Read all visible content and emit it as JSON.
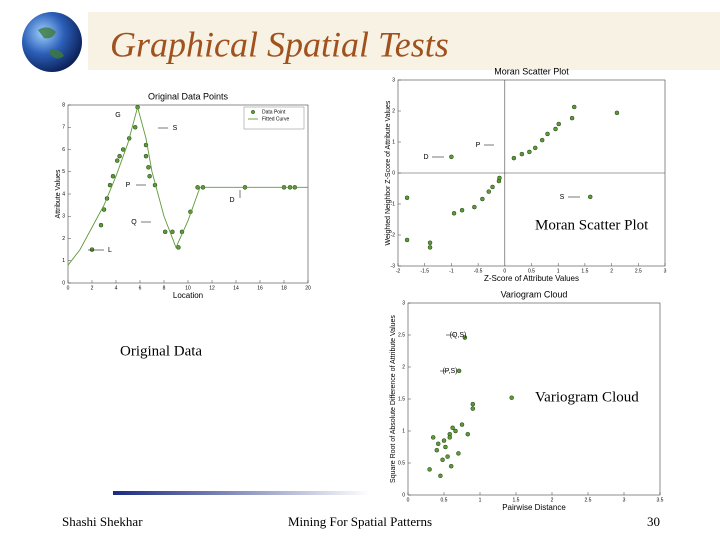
{
  "header": {
    "title": "Graphical Spatial Tests"
  },
  "captions": {
    "original": "Original Data",
    "moran": "Moran Scatter Plot",
    "variogram": "Variogram Cloud"
  },
  "footer": {
    "author": "Shashi Shekhar",
    "course": "Mining For Spatial Patterns",
    "page": "30"
  },
  "chart_data": [
    {
      "type": "scatter",
      "title": "Original Data Points",
      "x_label": "Location",
      "y_label": "Attribute Values",
      "xlim": [
        0,
        20
      ],
      "xticks": [
        0,
        2,
        4,
        6,
        8,
        10,
        12,
        14,
        16,
        18,
        20
      ],
      "ylim": [
        0,
        8
      ],
      "yticks": [
        0,
        1,
        2,
        3,
        4,
        5,
        6,
        7,
        8
      ],
      "legend": "upper right",
      "series": [
        {
          "name": "Data Point",
          "color": "#5f9a3a",
          "style": "points",
          "x": [
            2,
            2.75,
            3,
            3.25,
            3.5,
            3.75,
            4.1,
            4.3,
            4.6,
            5.1,
            5.6,
            5.8,
            6.5,
            6.5,
            6.7,
            6.8,
            7.25,
            8.1,
            8.7,
            9.2,
            9.5,
            10.2,
            10.8,
            11.25,
            14.75,
            18,
            18.5,
            18.9
          ],
          "values": [
            1.5,
            2.6,
            3.3,
            3.8,
            4.4,
            4.8,
            5.5,
            5.7,
            6,
            6.5,
            7,
            7.9,
            6.2,
            5.7,
            5.2,
            4.8,
            4.4,
            2.3,
            2.3,
            1.6,
            2.3,
            3.2,
            4.3,
            4.3,
            4.3,
            4.3,
            4.3,
            4.3
          ]
        },
        {
          "name": "Fitted Curve",
          "color": "#5f9a3a",
          "style": "line",
          "x": [
            0,
            1,
            2,
            3,
            4,
            5,
            5.8,
            6.5,
            7,
            8,
            9,
            10,
            11,
            12,
            20
          ],
          "values": [
            0.8,
            1.5,
            2.5,
            3.5,
            4.8,
            6.3,
            7.9,
            6.5,
            5,
            3,
            1.6,
            2.8,
            4.3,
            4.3,
            4.3
          ]
        }
      ],
      "annotations": [
        "G",
        "S",
        "P",
        "Q",
        "D",
        "L"
      ]
    },
    {
      "type": "scatter",
      "title": "Moran Scatter Plot",
      "x_label": "Z-Score of Attribute Values",
      "y_label": "Weighted Neighbor Z-Score of Attribute Values",
      "xlim": [
        -2,
        3
      ],
      "xticks": [
        -2,
        -1.5,
        -1,
        -0.5,
        0,
        0.5,
        1,
        1.5,
        2,
        2.5,
        3
      ],
      "ylim": [
        -3,
        3
      ],
      "yticks": [
        -3,
        -2,
        -1,
        0,
        1,
        2,
        3
      ],
      "quadrant_lines": true,
      "color": "#5f9a3a",
      "x": [
        -1.83,
        -1.83,
        -1.4,
        -1.4,
        -1.0,
        -0.95,
        -0.8,
        -0.57,
        -0.42,
        -0.3,
        -0.23,
        -0.11,
        -0.1,
        0.17,
        0.32,
        0.46,
        0.57,
        0.7,
        0.8,
        0.95,
        1.01,
        1.26,
        1.3,
        2.1,
        1.6
      ],
      "values": [
        -0.8,
        -2.16,
        -2.4,
        -2.25,
        0.52,
        -1.3,
        -1.2,
        -1.1,
        -0.84,
        -0.6,
        -0.45,
        -0.26,
        -0.16,
        0.48,
        0.61,
        0.68,
        0.81,
        1.06,
        1.26,
        1.42,
        1.58,
        1.77,
        2.13,
        1.94,
        -0.77
      ],
      "annotations": [
        "P",
        "D",
        "S"
      ]
    },
    {
      "type": "scatter",
      "title": "Variogram Cloud",
      "x_label": "Pairwise Distance",
      "y_label": "Square Root of Absolute Difference of Attribute Values",
      "xlim": [
        0,
        3.5
      ],
      "xticks": [
        0,
        0.5,
        1,
        1.5,
        2,
        2.5,
        3,
        3.5
      ],
      "ylim": [
        0,
        3
      ],
      "yticks": [
        0,
        0.5,
        1,
        1.5,
        2,
        2.5,
        3
      ],
      "color": "#5f9a3a",
      "x": [
        0.79,
        0.71,
        1.44,
        0.9,
        0.9,
        0.58,
        0.66,
        0.58,
        0.5,
        0.42,
        0.62,
        0.75,
        0.55,
        0.48,
        0.35,
        0.4,
        0.6,
        0.45,
        0.52,
        0.7,
        0.83,
        0.3
      ],
      "values": [
        2.46,
        1.94,
        1.52,
        1.42,
        1.35,
        0.95,
        1.0,
        0.9,
        0.85,
        0.8,
        1.05,
        1.1,
        0.6,
        0.55,
        0.9,
        0.7,
        0.45,
        0.3,
        0.75,
        0.65,
        0.95,
        0.4
      ],
      "annotations": [
        "(Q,S)",
        "(P,S)"
      ]
    }
  ]
}
